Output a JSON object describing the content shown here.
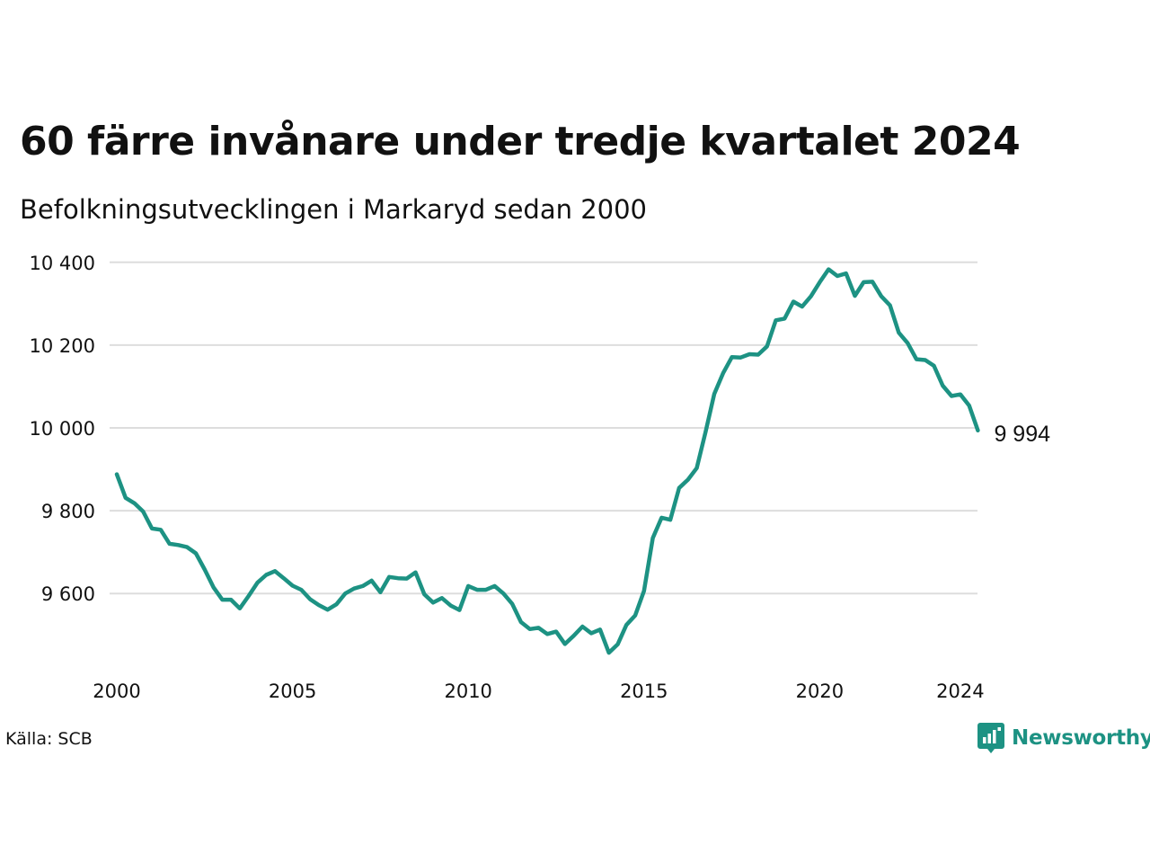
{
  "title": "60 färre invånare under tredje kvartalet 2024",
  "subtitle": "Befolkningsutvecklingen i Markaryd sedan 2000",
  "source": "Källa: SCB",
  "brand": "Newsworthy",
  "colors": {
    "line": "#1d9283",
    "grid": "#dddddd",
    "text": "#111111",
    "brand": "#1d9283"
  },
  "chart_data": {
    "type": "line",
    "title": "60 färre invånare under tredje kvartalet 2024",
    "subtitle": "Befolkningsutvecklingen i Markaryd sedan 2000",
    "xlabel": "",
    "ylabel": "",
    "xlim": [
      2000,
      2024.5
    ],
    "ylim": [
      9450,
      10410
    ],
    "grid": "horizontal",
    "x_ticks": [
      2000,
      2005,
      2010,
      2015,
      2020,
      2024
    ],
    "x_tick_labels": [
      "2000",
      "2005",
      "2010",
      "2015",
      "2020",
      "2024"
    ],
    "y_ticks": [
      9600,
      9800,
      10000,
      10200,
      10400
    ],
    "y_tick_labels": [
      "9 600",
      "9 800",
      "10 000",
      "10 200",
      "10 400"
    ],
    "end_label": "9 994",
    "series": [
      {
        "x_start": 2000,
        "x_step": 0.25,
        "values": [
          9888,
          9831,
          9818,
          9798,
          9757,
          9754,
          9720,
          9717,
          9712,
          9697,
          9658,
          9615,
          9585,
          9585,
          9564,
          9594,
          9626,
          9645,
          9654,
          9637,
          9619,
          9609,
          9586,
          9572,
          9561,
          9574,
          9600,
          9612,
          9618,
          9631,
          9603,
          9640,
          9637,
          9636,
          9651,
          9598,
          9578,
          9589,
          9571,
          9560,
          9618,
          9609,
          9609,
          9618,
          9600,
          9575,
          9531,
          9514,
          9517,
          9502,
          9508,
          9478,
          9498,
          9520,
          9504,
          9513,
          9457,
          9477,
          9524,
          9547,
          9606,
          9734,
          9783,
          9778,
          9855,
          9875,
          9903,
          9990,
          10082,
          10132,
          10171,
          10170,
          10178,
          10177,
          10197,
          10260,
          10264,
          10305,
          10293,
          10318,
          10352,
          10383,
          10367,
          10373,
          10319,
          10352,
          10353,
          10318,
          10296,
          10230,
          10205,
          10166,
          10164,
          10150,
          10102,
          10077,
          10081,
          10054,
          9994
        ]
      }
    ]
  }
}
